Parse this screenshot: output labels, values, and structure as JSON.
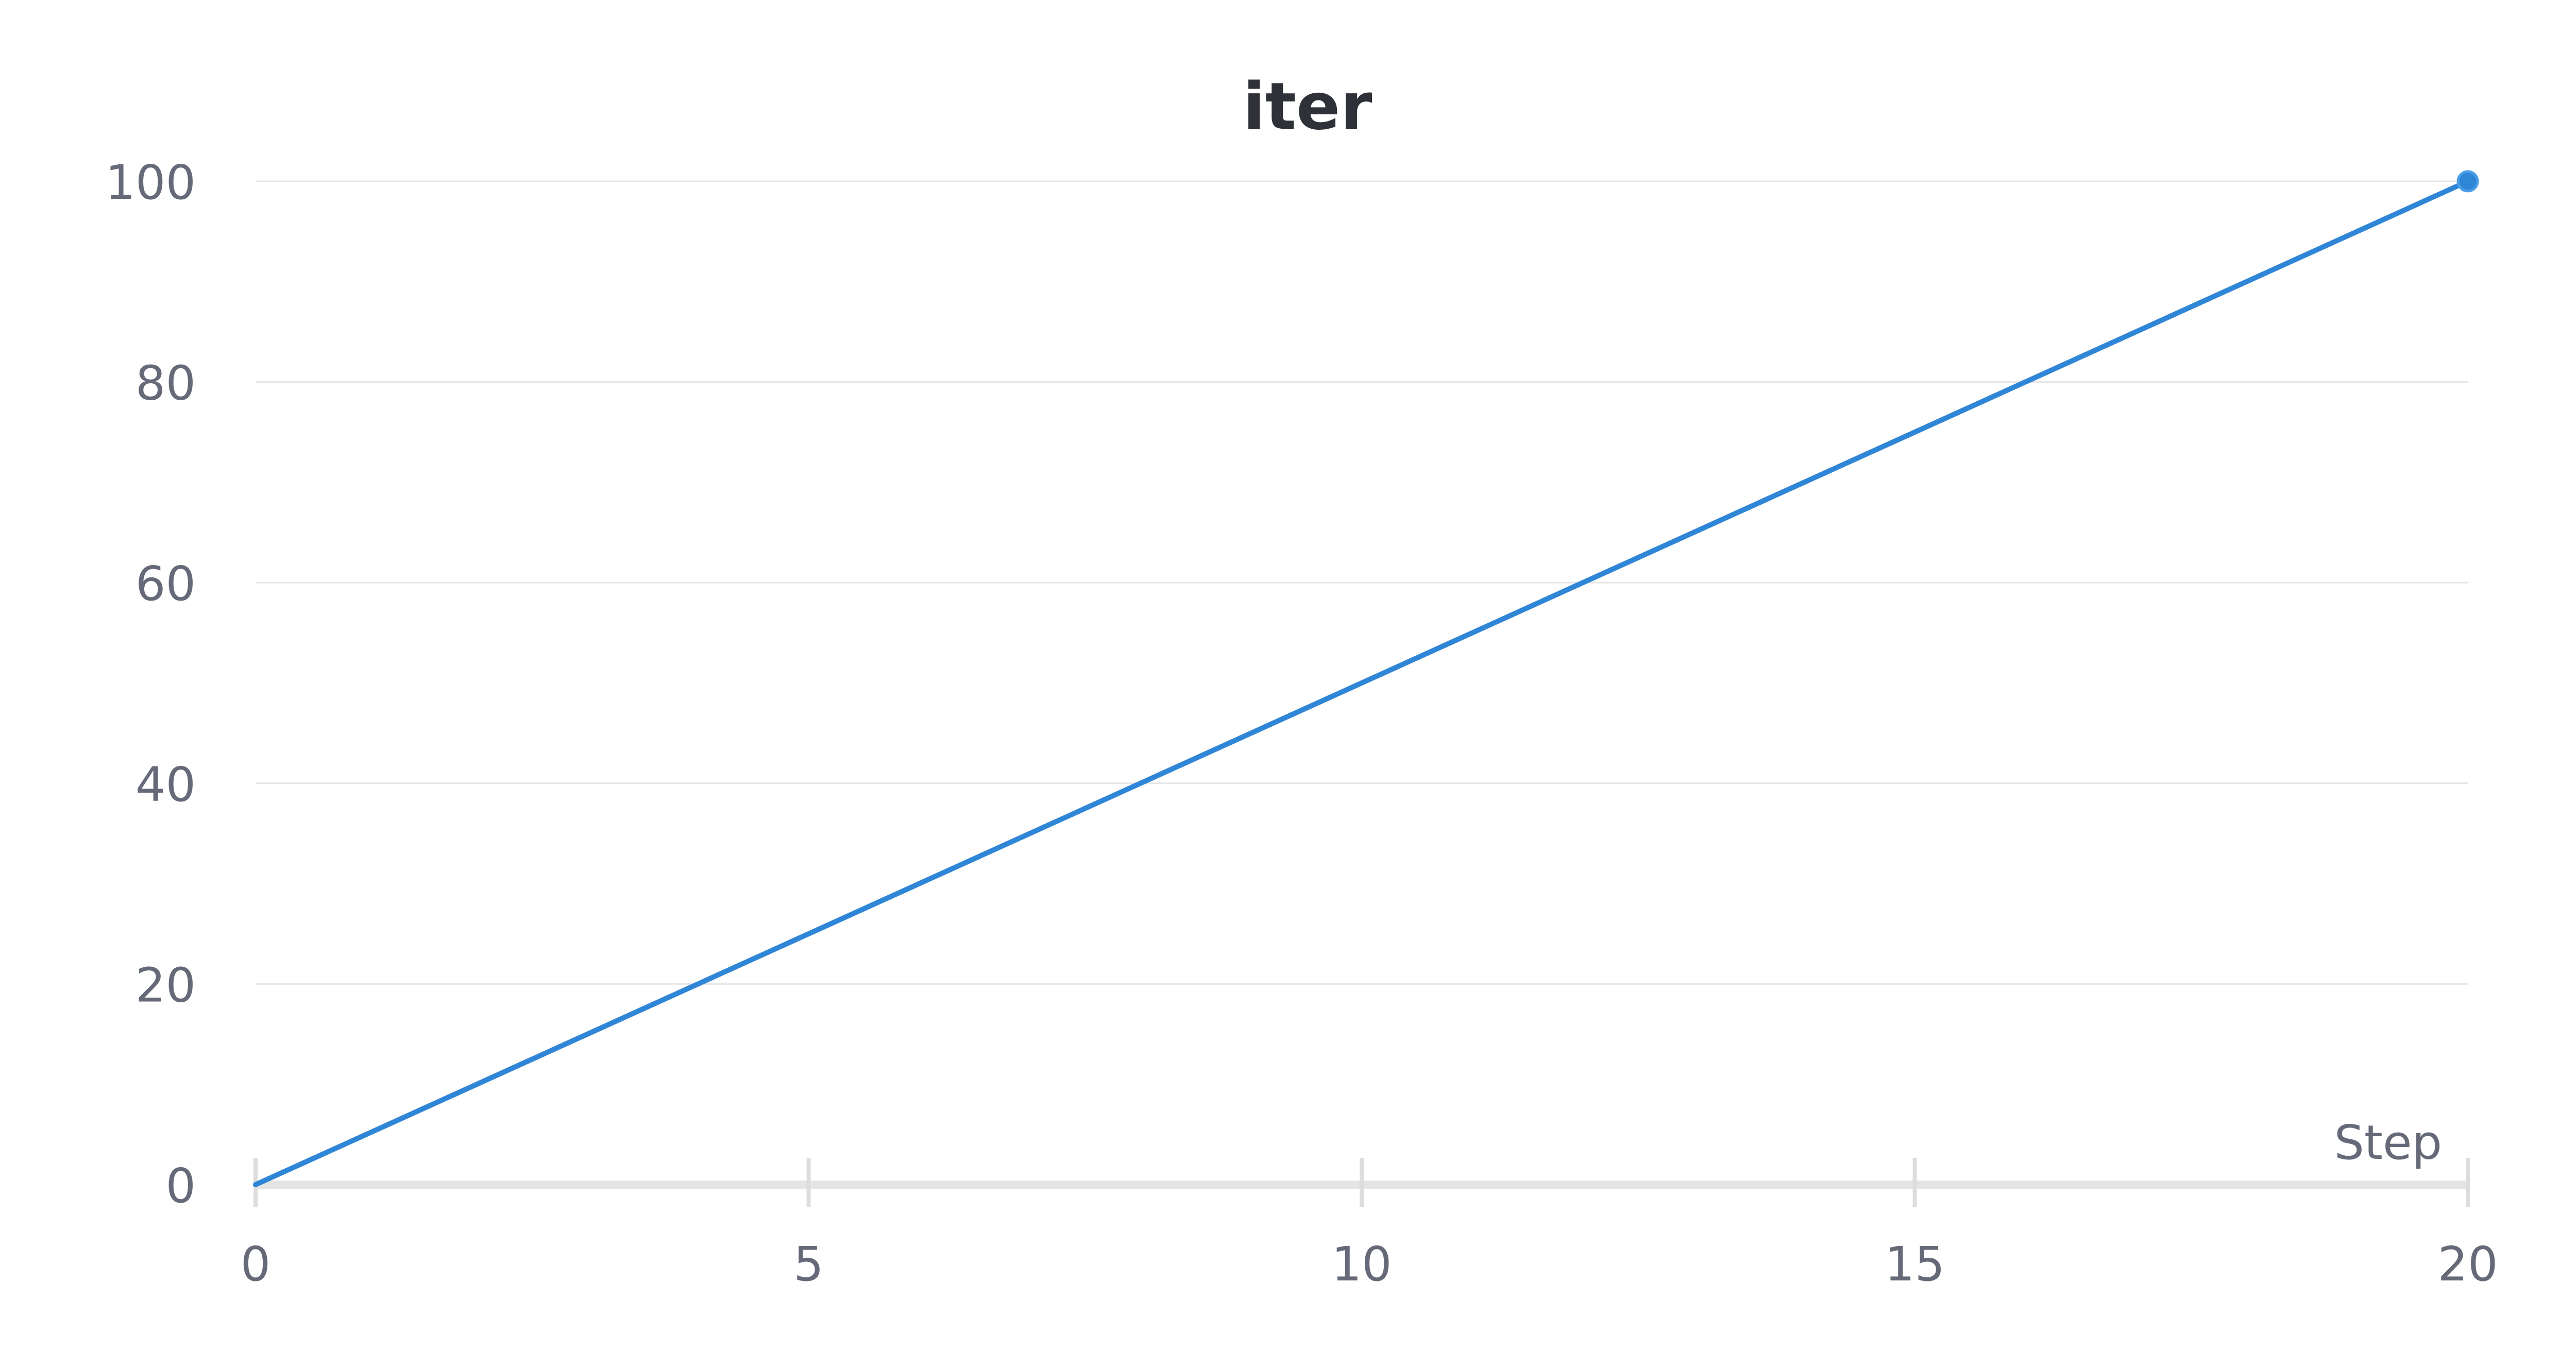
{
  "chart_data": {
    "type": "line",
    "title": "iter",
    "xlabel": "Step",
    "ylabel": "",
    "xlim": [
      0,
      20
    ],
    "ylim": [
      0,
      100
    ],
    "x_ticks": [
      0,
      5,
      10,
      15,
      20
    ],
    "y_ticks": [
      0,
      20,
      40,
      60,
      80,
      100
    ],
    "grid": true,
    "legend": "none",
    "series": [
      {
        "color": "#2f86d6",
        "x": [
          0,
          20
        ],
        "y": [
          0,
          100
        ]
      }
    ]
  }
}
